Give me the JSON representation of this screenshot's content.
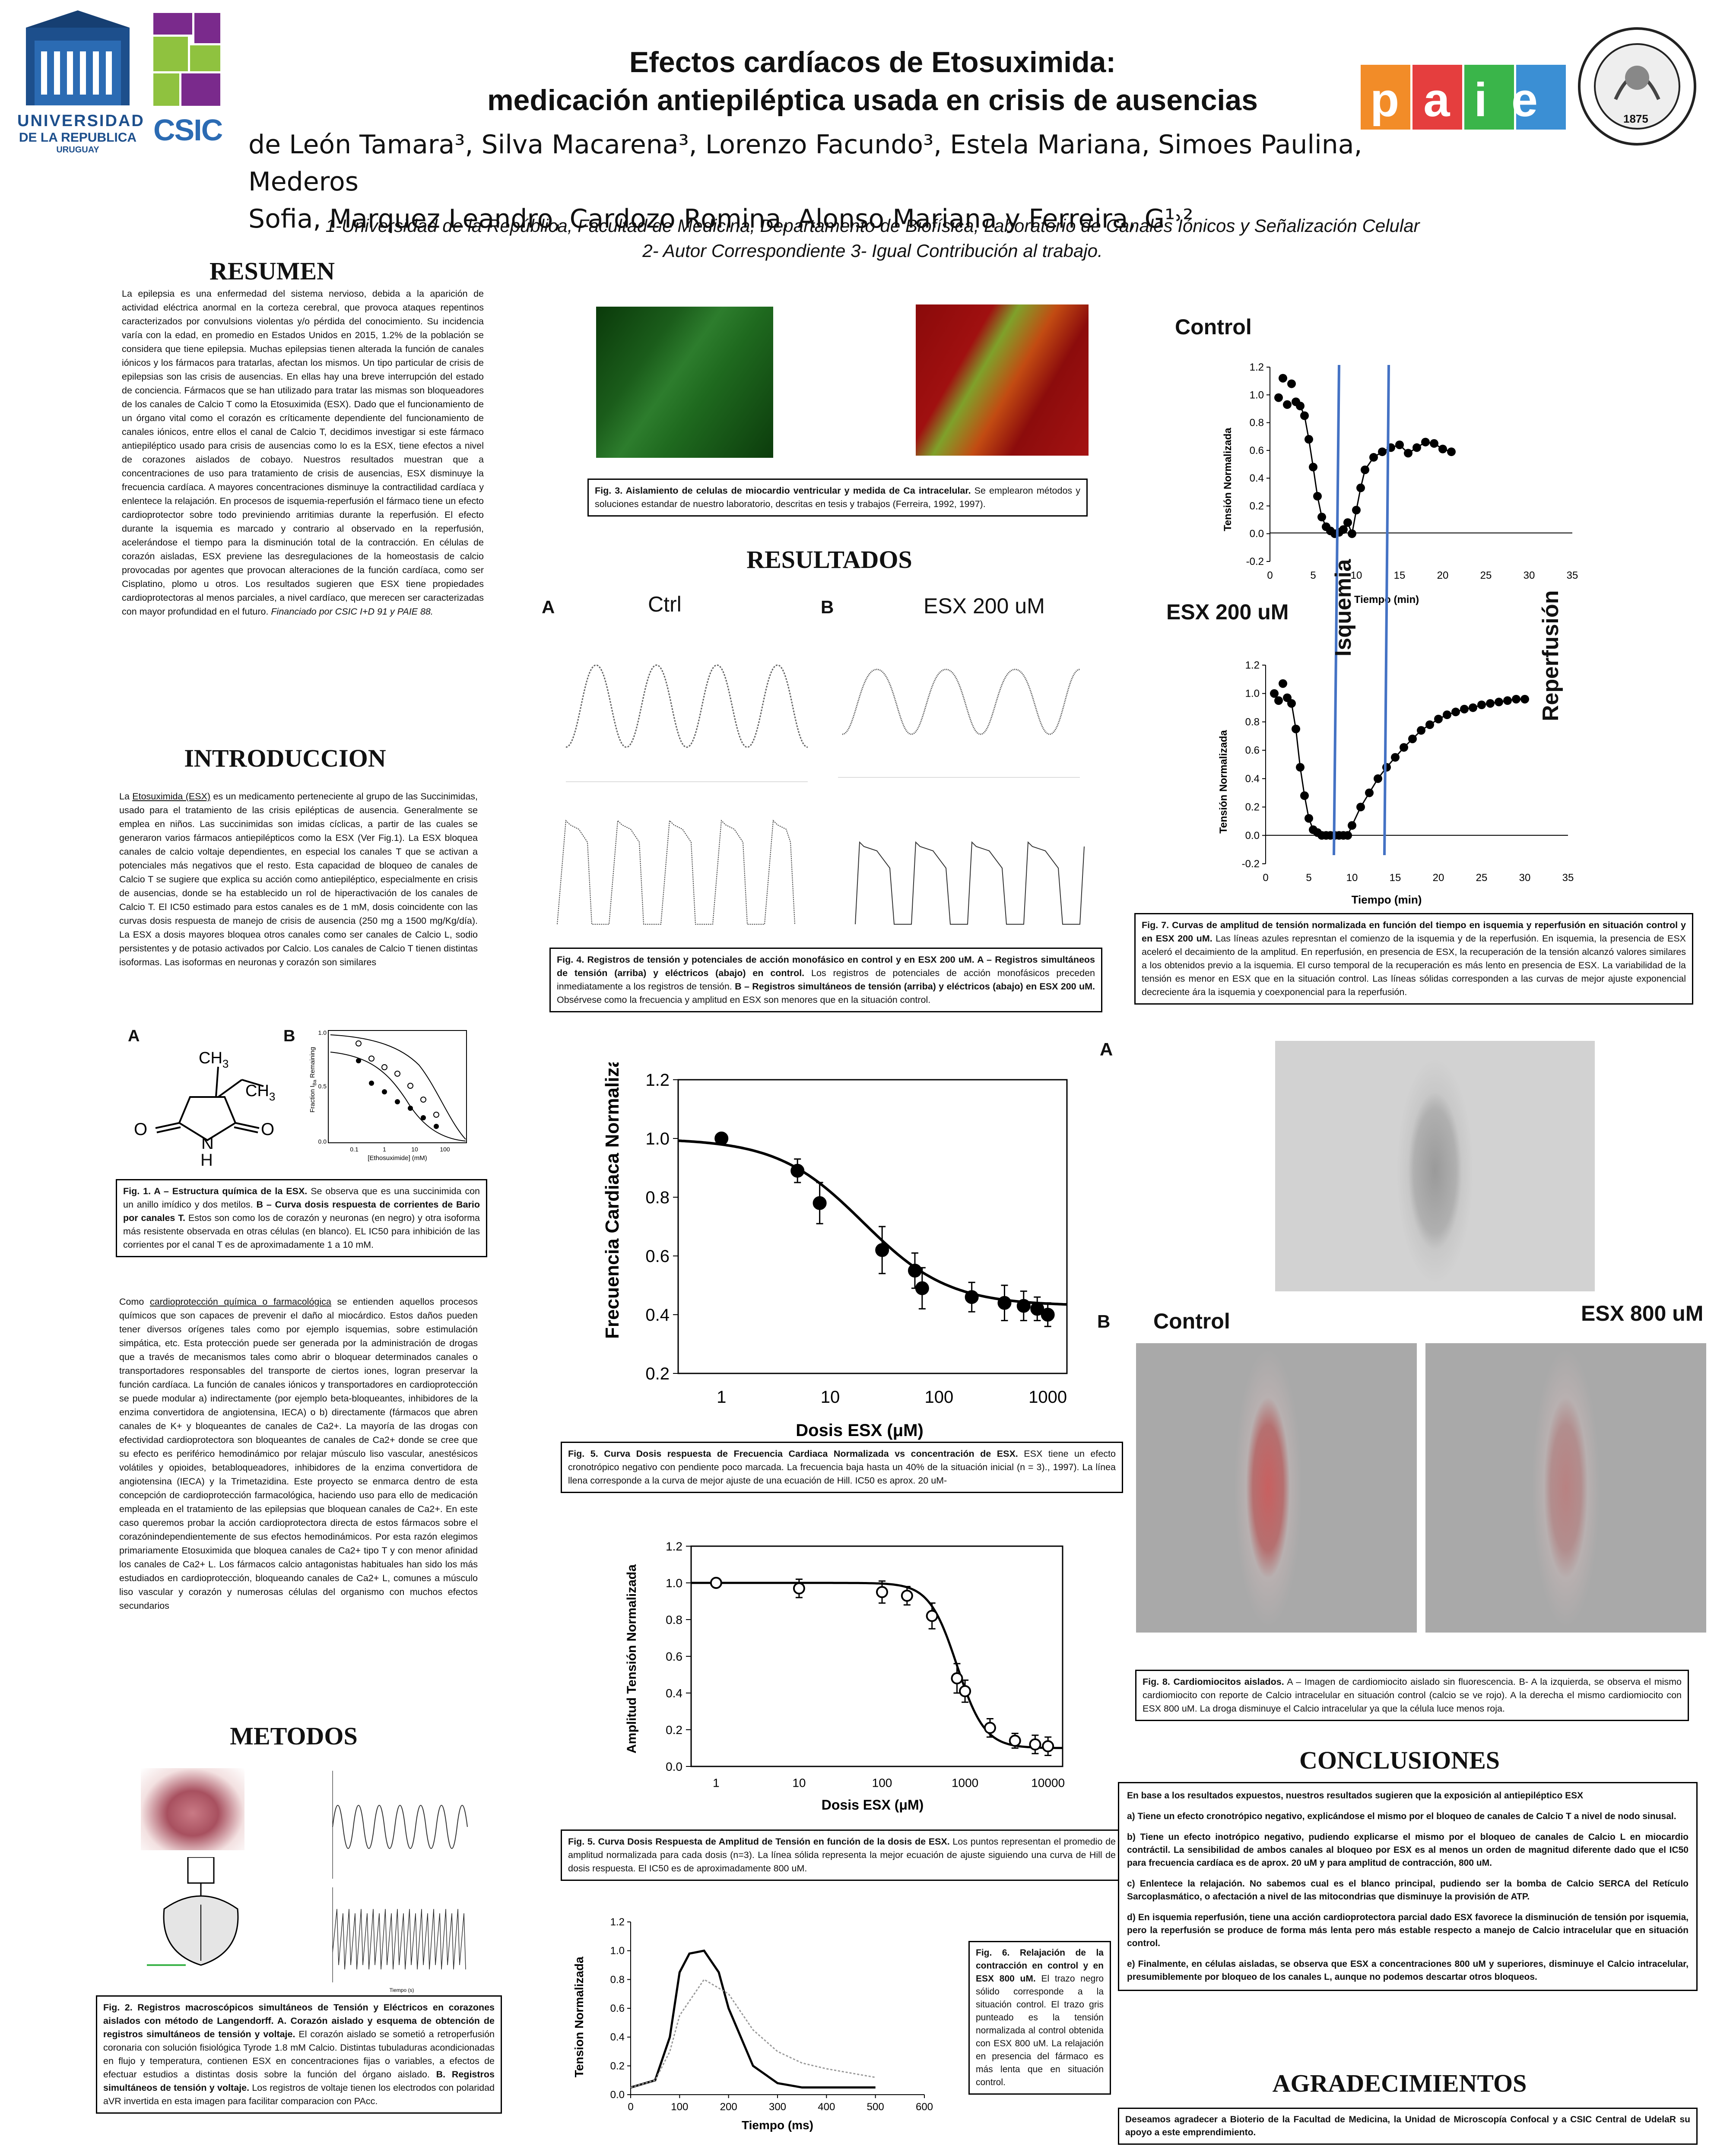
{
  "header": {
    "uni_name_line1": "UNIVERSIDAD",
    "uni_name_line2": "DE LA REPUBLICA",
    "uni_name_line3": "URUGUAY",
    "csic_label": "CSIC",
    "paie_label": "paie",
    "seal_year": "1875",
    "title_line1": "Efectos cardíacos de Etosuximida:",
    "title_line2": "medicación antiepiléptica usada en crisis de ausencias",
    "authors_line1": "de León Tamara³, Silva Macarena³, Lorenzo Facundo³, Estela Mariana, Simoes Paulina, Mederos",
    "authors_line2": "Sofia, Marquez Leandro, Cardozo Romina, Alonso Mariana y Ferreira, G¹˒²",
    "affil1": "1-Universidad de la República, Facultad de Medicina, Departamento de Biofísica, Laboratorio de Canales Iónicos y Señalización Celular",
    "affil2": "2- Autor Correspondiente 3- Igual Contribución al trabajo."
  },
  "resumen": {
    "heading": "RESUMEN",
    "text": "La epilepsia es una enfermedad del sistema nervioso, debida a la aparición de actividad eléctrica anormal en la corteza cerebral, que provoca ataques repentinos caracterizados por convulsions violentas y/o pérdida del conocimiento. Su incidencia varía con la edad, en promedio en Estados Unidos en 2015, 1.2% de la población se considera que tiene epilepsia. Muchas epilepsias tienen alterada la función de canales iónicos y los fármacos para tratarlas, afectan los mismos. Un tipo particular de crisis de epilepsias son las crisis de ausencias. En ellas hay una breve interrupción del estado de conciencia. Fármacos que se han utilizado para tratar las mismas son bloqueadores de los canales de Calcio T como la Etosuximida (ESX). Dado que el funcionamiento de un órgano vital como el corazón es críticamente dependiente del funcionamiento de canales iónicos, entre ellos el canal de Calcio T, decidimos investigar si este fármaco antiepiléptico usado para crisis de ausencias como lo es la ESX, tiene efectos a nivel de corazones aislados de cobayo. Nuestros resultados muestran que a concentraciones de uso para tratamiento de crisis de ausencias, ESX disminuye la frecuencia cardíaca. A mayores concentraciones disminuye la contractilidad cardíaca y enlentece la relajación. En procesos de isquemia-reperfusión el fármaco tiene un efecto cardioprotector sobre todo previniendo arritimias durante la reperfusión. El efecto durante la isquemia es marcado y contrario al observado en la reperfusión, acelerándose el tiempo para la disminución total de la contracción. En células de corazón aisladas, ESX previene las desregulaciones de la homeostasis de calcio provocadas por agentes que provocan alteraciones de la función cardíaca, como ser Cisplatino, plomo u otros. Los resultados sugieren que ESX tiene propiedades cardioprotectoras al menos parciales, a nivel cardíaco, que merecen ser caracterizadas con mayor profundidad en el futuro.",
    "funding": "Financiado por CSIC I+D 91 y PAIE 88."
  },
  "introduccion": {
    "heading": "INTRODUCCION",
    "link1": "Etosuximida (ESX)",
    "lead1": "La ",
    "text1": " es un medicamento perteneciente al grupo de las Succinimidas, usado para el tratamiento de las crisis epilépticas de ausencia. Generalmente se emplea en niños. Las succinimidas son imidas cíclicas, a partir de las cuales se generaron varios fármacos antiepilépticos como la ESX (Ver Fig.1). La ESX bloquea canales de calcio voltaje dependientes, en especial los canales T que se activan a potenciales más negativos que el resto. Esta capacidad de bloqueo de canales de Calcio T se sugiere que explica su acción como antiepiléptico, especialmente en crisis de ausencias, donde se ha establecido un rol de hiperactivación de los canales de Calcio T. El IC50 estimado para estos canales es de 1 mM, dosis coincidente con las curvas dosis respuesta de manejo de crisis de ausencia (250 mg a 1500 mg/Kg/día). La ESX a dosis mayores bloquea otros canales como ser canales de Calcio L, sodio persistentes y de potasio activados por Calcio. Los canales de Calcio T tienen distintas isoformas. Las isoformas en neuronas y corazón son similares",
    "link2": "cardioprotección química o farmacológica",
    "lead2": "Como ",
    "text2": " se entienden aquellos procesos químicos que son capaces de prevenir el daño al miocárdico. Estos daños pueden tener diversos orígenes tales como por ejemplo isquemias, sobre estimulación simpática, etc. Esta protección puede ser generada por la administración de drogas que a través de mecanismos tales como abrir o bloquear determinados canales o transportadores responsables del transporte de ciertos iones, logran preservar la función cardíaca. La función de canales iónicos y transportadores en cardioprotección se puede modular a) indirectamente (por ejemplo beta-bloqueantes, inhibidores de la enzima convertidora de angiotensina, IECA) o b) directamente (fármacos que abren canales de K+ y bloqueantes de canales de Ca2+. La mayoría de las drogas con efectividad cardioprotectora son bloqueantes de canales de Ca2+ donde se cree que su efecto es periférico hemodinámico por relajar músculo liso vascular, anestésicos volátiles y opioides, betabloqueadores, inhibidores de la enzima convertidora de angiotensina (IECA) y la Trimetazidina. Este proyecto se enmarca dentro de esta concepción de cardioprotección farmacológica, haciendo uso para ello de medicación empleada en el tratamiento de las epilepsias que bloquean canales de Ca2+. En este caso queremos probar la acción cardioprotectora directa de estos fármacos sobre el corazónindependientemente de sus efectos hemodinámicos. Por esta razón elegimos primariamente Etosuximida que bloquea canales de Ca2+ tipo T y con menor afinidad los canales de Ca2+ L. Los fármacos calcio antagonistas habituales han sido los más estudiados en cardioprotección, bloqueando canales de Ca2+ L, comunes a músculo liso vascular y corazón y numerosas células del organismo con muchos efectos secundarios"
  },
  "fig1": {
    "label_a": "A",
    "label_b": "B",
    "ch3_top": "CH",
    "ch3_right": "CH",
    "sub3": "3",
    "atom_o": "O",
    "atom_n": "N",
    "atom_h": "H",
    "ylabel": "Fraction I",
    "ylabel_sub": "Ba",
    "ylabel_rest": " Remaining",
    "xlabel": "[Ethosuximide] (mM)",
    "y_ticks": [
      "1.0",
      "0.5",
      "0.0"
    ],
    "x_ticks": [
      "0.1",
      "1",
      "10",
      "100"
    ],
    "caption_bold1": "Fig. 1. A – Estructura química de la ESX.",
    "caption1": " Se observa que es una succinimida con un anillo imídico y dos metilos. ",
    "caption_bold2": "B – Curva dosis respuesta de corrientes de Bario por canales T.",
    "caption2": " Estos son como los de corazón y neuronas (en negro) y otra isoforma más resistente observada en otras células (en blanco). EL IC50 para inhibición de las corrientes por el canal T es de aproximadamente 1 a 10 mM."
  },
  "metodos": {
    "heading": "METODOS",
    "trace_axis": "Tiempo (s)",
    "caption_bold1": "Fig. 2. Registros macroscópicos simultáneos de Tensión y Eléctricos en corazones aislados con método de Langendorff. A. Corazón aislado y esquema de obtención de registros simultáneos de tensión y voltaje.",
    "caption1": " El corazón aislado se sometió a retroperfusión coronaria con solución fisiológica Tyrode 1.8 mM Calcio. Distintas tubuladuras acondicionadas en flujo y temperatura, contienen ESX en concentraciones fijas o variables, a efectos de efectuar estudios a distintas dosis sobre la función del órgano aislado. ",
    "caption_bold2": "B. Registros simultáneos de tensión y voltaje.",
    "caption2": " Los registros de voltaje tienen los electrodos con polaridad aVR invertida en esta imagen para facilitar comparacion con PAcc."
  },
  "fig3": {
    "caption_bold": "Fig. 3. Aislamiento de celulas de miocardio ventricular y medida de Ca intracelular.",
    "caption": " Se emplearon métodos y soluciones estandar de nuestro laboratorio, descritas en tesis y trabajos (Ferreira, 1992, 1997)."
  },
  "resultados": {
    "heading": "RESULTADOS",
    "label_a": "A",
    "label_b": "B",
    "ctrl_label": "Ctrl",
    "esx_label": "ESX 200 uM"
  },
  "fig4": {
    "caption_bold1": "Fig. 4. Registros de tensión y potenciales de acción monofásico en control y en ESX 200 uM. A – Registros simultáneos de tensión (arriba) y eléctricos (abajo) en control.",
    "caption1": " Los registros de potenciales de acción monofásicos preceden inmediatamente a los registros de tensión. ",
    "caption_bold2": "B – Registros simultáneos de tensión (arriba) y eléctricos (abajo) en ESX 200 uM.",
    "caption2": " Obsérvese como la frecuencia y amplitud en ESX son menores que en la situación control."
  },
  "fig7": {
    "control_label": "Control",
    "esx_label": "ESX 200 uM",
    "isquemia_label": "Isquemia",
    "reperfusion_label": "Reperfusión",
    "ylabel": "Tensión Normalizada",
    "xlabel": "Tiempo (min)",
    "y_ticks": [
      "1.2",
      "1.0",
      "0.8",
      "0.6",
      "0.4",
      "0.2",
      "0.0",
      "-0.2"
    ],
    "x_ticks": [
      "0",
      "5",
      "10",
      "15",
      "20",
      "25",
      "30",
      "35"
    ],
    "caption_bold": "Fig. 7. Curvas de amplitud de tensión normalizada en función del tiempo en isquemia y reperfusión en situación control y en ESX 200 uM.",
    "caption": " Las líneas azules represntan el comienzo de la isquemia y de la reperfusión. En isquemia, la presencia de ESX aceleró el decaimiento de la amplitud. En reperfusión, en presencia de ESX, la recuperación de la tensión alcanzó valores similares a los obtenidos previo a la isquemia. El curso temporal de la recuperación es más lento en presencia de ESX. La variabilidad de la tensión es menor en ESX que en la situación control. Las líneas sólidas corresponden a las curvas de mejor ajuste exponencial decreciente ára la isquemia y coexponencial para la reperfusión."
  },
  "fig5a": {
    "ylabel": "Frecuencia Cardiaca Normalizada",
    "xlabel": "Dosis ESX (μM)",
    "y_ticks": [
      "1.2",
      "1.0",
      "0.8",
      "0.6",
      "0.4",
      "0.2"
    ],
    "x_ticks": [
      "1",
      "10",
      "100",
      "1000"
    ],
    "caption_bold": "Fig. 5. Curva Dosis respuesta de Frecuencia Cardiaca Normalizada vs concentración de ESX.",
    "caption": " ESX tiene un efecto cronotrópico negativo con pendiente poco marcada. La frecuencia baja hasta un 40% de la situación inicial (n = 3)., 1997). La línea llena corresponde a la curva de mejor ajuste de una ecuación de Hill. IC50 es aprox. 20 uM-"
  },
  "fig5b": {
    "ylabel": "Amplitud Tensión Normalizada",
    "xlabel": "Dosis ESX (μM)",
    "y_ticks": [
      "1.2",
      "1.0",
      "0.8",
      "0.6",
      "0.4",
      "0.2",
      "0.0"
    ],
    "x_ticks": [
      "1",
      "10",
      "100",
      "1000",
      "10000"
    ],
    "caption_bold": "Fig. 5. Curva Dosis Respuesta de Amplitud de Tensión en función de la dosis de ESX.",
    "caption": " Los puntos representan el promedio de amplitud normalizada para cada dosis (n=3). La línea sólida representa la mejor ecuación de ajuste siguiendo una curva de Hill de dosis respuesta. El IC50 es de aproximadamente 800 uM."
  },
  "fig6": {
    "ylabel": "Tension Normalizada",
    "xlabel": "Tiempo (ms)",
    "y_ticks": [
      "1.2",
      "1.0",
      "0.8",
      "0.6",
      "0.4",
      "0.2",
      "0.0"
    ],
    "x_ticks": [
      "0",
      "100",
      "200",
      "300",
      "400",
      "500",
      "600"
    ],
    "caption_bold": "Fig. 6. Relajación de la contracción en control y en ESX 800 uM.",
    "caption": " El trazo negro sólido corresponde a la situación control. El trazo gris punteado es la tensión normalizada al control obtenida con ESX 800 uM. La relajación en presencia del fármaco es más lenta que en situación control."
  },
  "fig8": {
    "label_a": "A",
    "label_b": "B",
    "control_label": "Control",
    "esx_label": "ESX 800 uM",
    "caption_bold": "Fig. 8. Cardiomiocitos aislados.",
    "caption": " A – Imagen de cardiomiocito aislado sin fluorescencia. B- A la izquierda, se observa el mismo cardiomiocito con reporte de Calcio intracelular en situación control (calcio se ve rojo). A la derecha el mismo cardiomiocito con ESX 800 uM. La droga disminuye el Calcio intracelular ya que la célula luce menos roja."
  },
  "conclusiones": {
    "heading": "CONCLUSIONES",
    "intro": "En base a los resultados expuestos, nuestros resultados sugieren que la exposición al antiepiléptico ESX",
    "item_a": "a)    Tiene un efecto cronotrópico negativo, explicándose el mismo por el bloqueo de canales de Calcio T a nivel de nodo sinusal.",
    "item_b": "b)   Tiene un efecto inotrópico negativo, pudiendo explicarse el mismo por el bloqueo de canales de Calcio L en miocardio contráctil. La sensibilidad de ambos canales al bloqueo por ESX es al menos un orden de magnitud diferente dado que el IC50 para frecuencia cardíaca es de aprox. 20 uM y para amplitud de contracción, 800 uM.",
    "item_c": "c) Enlentece la relajación. No sabemos cual es el blanco principal, pudiendo ser la bomba de Calcio SERCA del Retículo Sarcoplasmático, o afectación a nivel de las mitocondrias que disminuye la provisión de ATP.",
    "item_d": "d) En isquemia reperfusión, tiene una acción cardioprotectora parcial dado ESX favorece la disminución de tensión por isquemia, pero la reperfusión se produce de forma más lenta pero más estable respecto a manejo de Calcio intracelular que en situación control.",
    "item_e": "e) Finalmente, en células aisladas, se observa que ESX a concentraciones 800 uM y superiores, disminuye el Calcio intracelular, presumiblemente por bloqueo de los canales L, aunque no podemos descartar otros bloqueos."
  },
  "agradecimientos": {
    "heading": "AGRADECIMIENTOS",
    "text": "Deseamos agradecer a Bioterio de la Facultad de Medicina, la Unidad de Microscopía Confocal y a CSIC Central de UdelaR su apoyo a este emprendimiento."
  },
  "chart_data": [
    {
      "id": "fig5a",
      "type": "scatter",
      "xlabel": "Dosis ESX (μM)",
      "ylabel": "Frecuencia Cardiaca Normalizada",
      "x_scale": "log",
      "xlim": [
        0.4,
        1500
      ],
      "ylim": [
        0.2,
        1.2
      ],
      "x": [
        1,
        5,
        8,
        30,
        60,
        70,
        200,
        400,
        600,
        800,
        1000
      ],
      "y": [
        1.0,
        0.89,
        0.78,
        0.62,
        0.55,
        0.49,
        0.46,
        0.44,
        0.43,
        0.42,
        0.4
      ],
      "yerr": [
        0.01,
        0.04,
        0.07,
        0.08,
        0.06,
        0.07,
        0.05,
        0.06,
        0.05,
        0.04,
        0.04
      ]
    },
    {
      "id": "fig5b",
      "type": "scatter",
      "xlabel": "Dosis ESX (μM)",
      "ylabel": "Amplitud Tensión Normalizada",
      "x_scale": "log",
      "xlim": [
        0.5,
        15000
      ],
      "ylim": [
        0.0,
        1.2
      ],
      "x": [
        1,
        10,
        100,
        200,
        400,
        800,
        1000,
        2000,
        4000,
        7000,
        10000
      ],
      "y": [
        1.0,
        0.97,
        0.95,
        0.93,
        0.82,
        0.48,
        0.41,
        0.21,
        0.14,
        0.12,
        0.11
      ],
      "yerr": [
        0.01,
        0.05,
        0.06,
        0.05,
        0.07,
        0.08,
        0.06,
        0.05,
        0.04,
        0.05,
        0.05
      ]
    },
    {
      "id": "fig7-control",
      "type": "scatter",
      "title": "Control",
      "xlabel": "Tiempo (min)",
      "ylabel": "Tensión Normalizada",
      "xlim": [
        -2,
        35
      ],
      "ylim": [
        -0.2,
        1.2
      ],
      "x": [
        1,
        1.5,
        2,
        2.5,
        3,
        3.5,
        4,
        4.5,
        5,
        5.5,
        6,
        6.5,
        7,
        7.5,
        8,
        8.5,
        9,
        9.5,
        10,
        10.5,
        11,
        12,
        13,
        14,
        15,
        16,
        17,
        18,
        19,
        20,
        21
      ],
      "y": [
        0.98,
        1.12,
        0.93,
        1.08,
        0.95,
        0.92,
        0.85,
        0.68,
        0.48,
        0.27,
        0.12,
        0.05,
        0.02,
        0.0,
        0.01,
        0.03,
        0.08,
        0.0,
        0.17,
        0.33,
        0.46,
        0.55,
        0.59,
        0.62,
        0.64,
        0.58,
        0.62,
        0.66,
        0.65,
        0.61,
        0.59
      ],
      "markers": {
        "ischemia_start": 3,
        "reperfusion_start": 10
      }
    },
    {
      "id": "fig7-esx",
      "type": "scatter",
      "title": "ESX 200 uM",
      "xlabel": "Tiempo (min)",
      "ylabel": "Tensión Normalizada",
      "xlim": [
        -2,
        35
      ],
      "ylim": [
        -0.2,
        1.2
      ],
      "x": [
        1,
        1.5,
        2,
        2.5,
        3,
        3.5,
        4,
        4.5,
        5,
        5.5,
        6,
        6.5,
        7,
        7.5,
        8,
        8.5,
        9,
        9.5,
        10,
        11,
        12,
        13,
        14,
        15,
        16,
        17,
        18,
        19,
        20,
        21,
        22,
        23,
        24,
        25,
        26,
        27,
        28,
        29,
        30
      ],
      "y": [
        1.0,
        0.95,
        1.07,
        0.97,
        0.93,
        0.75,
        0.48,
        0.28,
        0.12,
        0.04,
        0.02,
        0.0,
        0.0,
        0.0,
        0.0,
        0.0,
        0.0,
        0.0,
        0.07,
        0.2,
        0.3,
        0.4,
        0.48,
        0.55,
        0.62,
        0.68,
        0.74,
        0.78,
        0.82,
        0.85,
        0.87,
        0.89,
        0.9,
        0.92,
        0.93,
        0.94,
        0.95,
        0.96,
        0.96
      ],
      "markers": {
        "ischemia_start": 3,
        "reperfusion_start": 10
      }
    },
    {
      "id": "fig6",
      "type": "line",
      "xlabel": "Tiempo (ms)",
      "ylabel": "Tension Normalizada",
      "xlim": [
        0,
        600
      ],
      "ylim": [
        0.0,
        1.2
      ],
      "series": [
        {
          "x": [
            0,
            50,
            80,
            100,
            120,
            150,
            180,
            200,
            250,
            300,
            350,
            400,
            500
          ],
          "y": [
            0.05,
            0.1,
            0.4,
            0.85,
            0.98,
            1.0,
            0.85,
            0.6,
            0.2,
            0.08,
            0.05,
            0.05,
            0.05
          ]
        },
        {
          "x": [
            0,
            50,
            80,
            100,
            150,
            200,
            250,
            300,
            350,
            400,
            450,
            500
          ],
          "y": [
            0.05,
            0.1,
            0.3,
            0.55,
            0.8,
            0.7,
            0.45,
            0.3,
            0.22,
            0.18,
            0.15,
            0.12
          ]
        }
      ]
    }
  ]
}
